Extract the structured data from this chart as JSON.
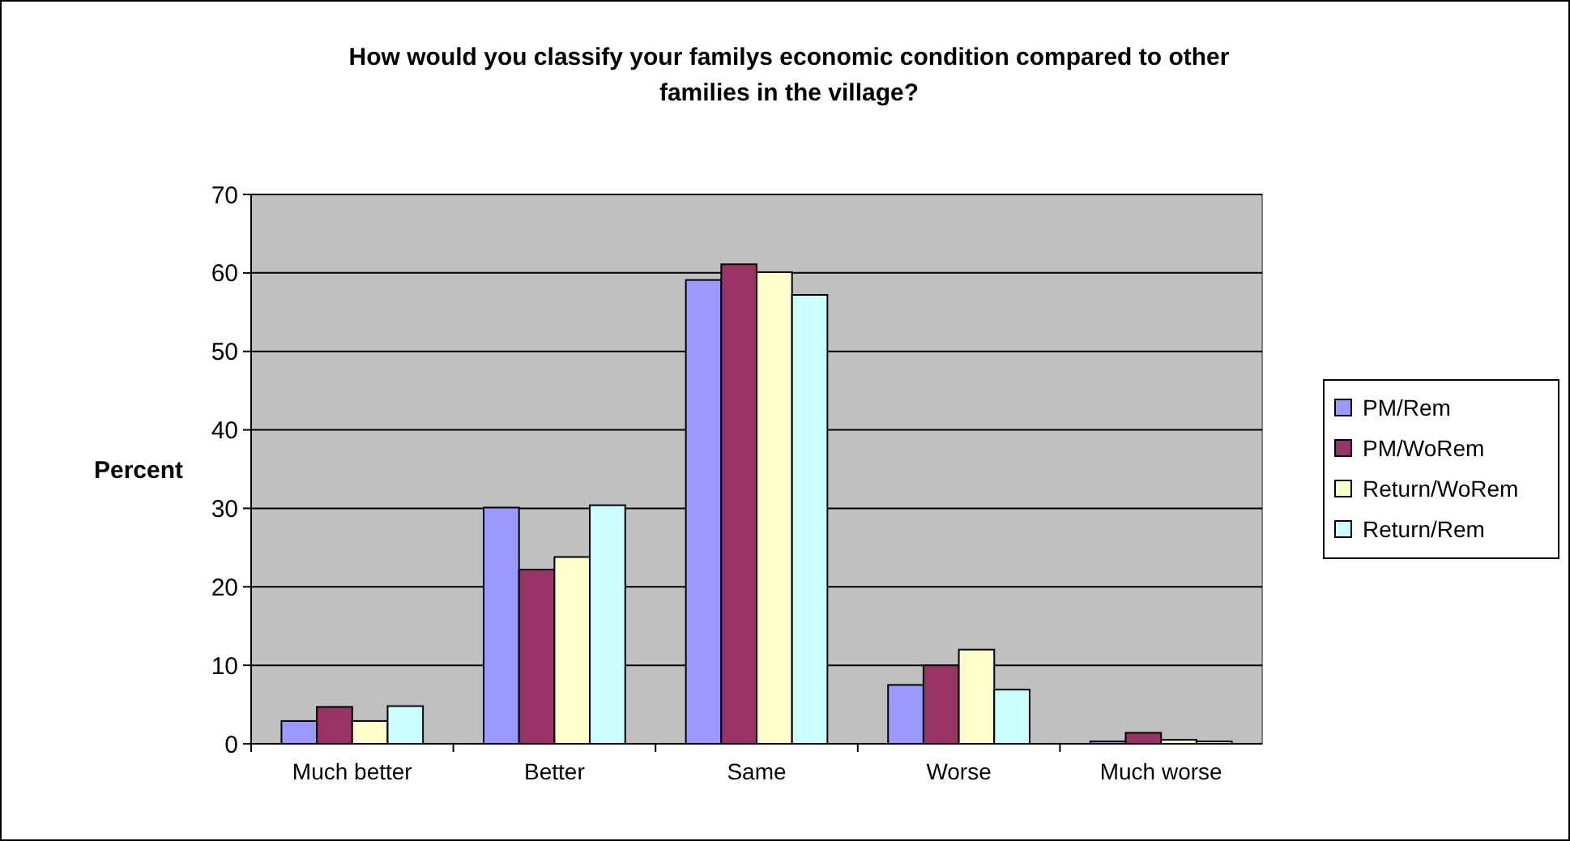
{
  "chart_data": {
    "type": "bar",
    "title": "How would you classify your familys economic condition compared to other families in the village?",
    "ylabel": "Percent",
    "categories": [
      "Much better",
      "Better",
      "Same",
      "Worse",
      "Much worse"
    ],
    "series": [
      {
        "name": "PM/Rem",
        "color": "#9999ff",
        "values": [
          2.9,
          30.1,
          59.1,
          7.5,
          0.3
        ]
      },
      {
        "name": "PM/WoRem",
        "color": "#993366",
        "values": [
          4.7,
          22.2,
          61.1,
          10,
          1.4
        ]
      },
      {
        "name": "Return/WoRem",
        "color": "#ffffcc",
        "values": [
          2.9,
          23.8,
          60.1,
          12,
          0.5
        ]
      },
      {
        "name": "Return/Rem",
        "color": "#ccffff",
        "values": [
          4.8,
          30.4,
          57.2,
          6.9,
          0.3
        ]
      }
    ],
    "ylim": [
      0,
      70
    ],
    "yticks": [
      0,
      10,
      20,
      30,
      40,
      50,
      60,
      70
    ],
    "grid": "y",
    "legend": "right"
  }
}
